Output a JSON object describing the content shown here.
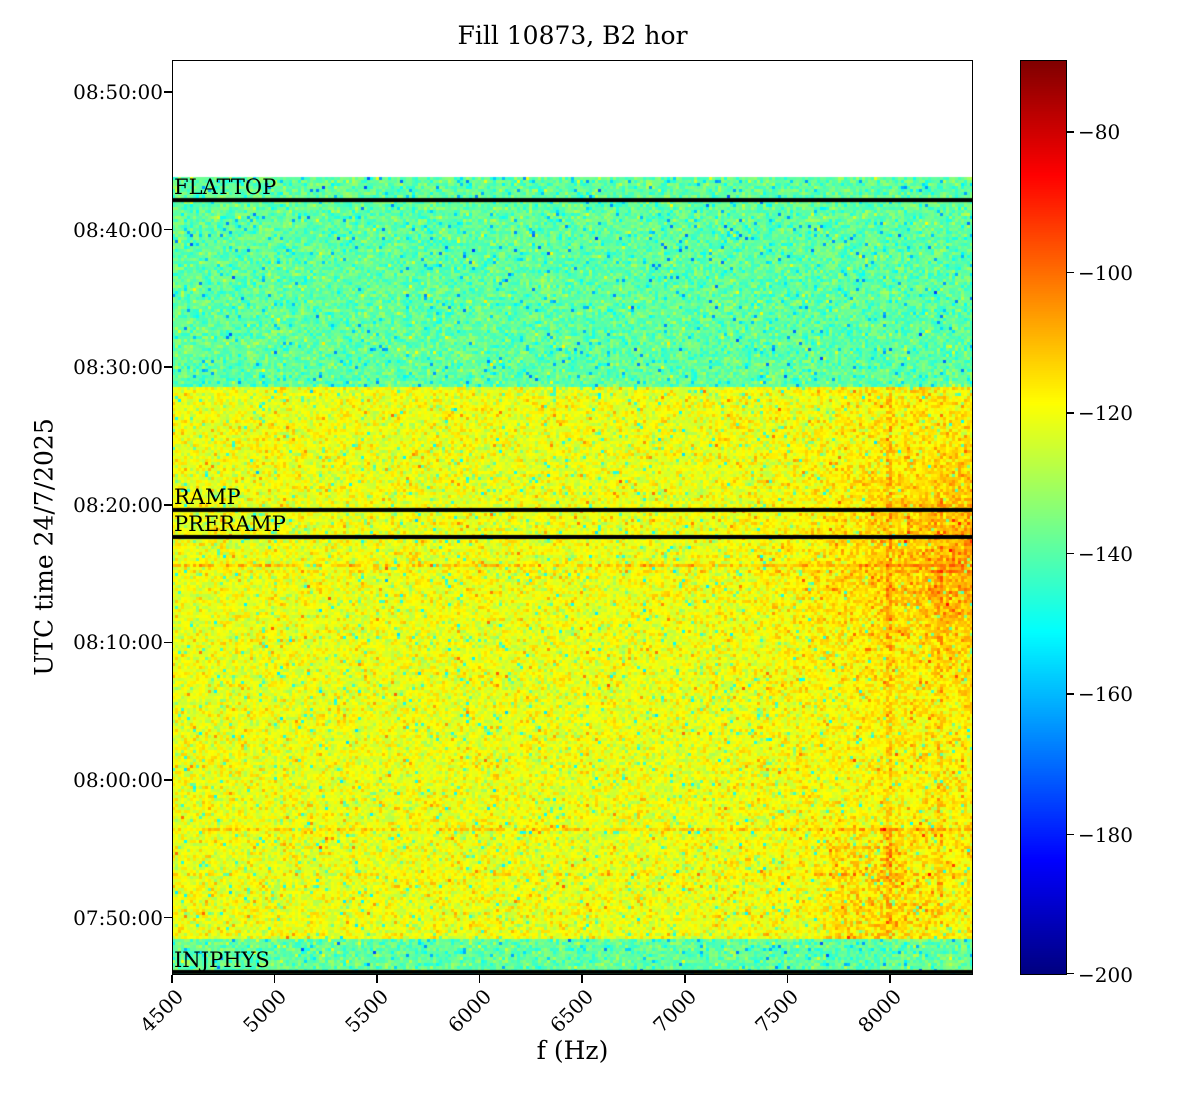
{
  "chart_data": {
    "type": "heatmap",
    "subtype": "spectrogram",
    "title": "Fill 10873, B2 hor",
    "xlabel": "f (Hz)",
    "ylabel": "UTC time 24/7/2025",
    "x_range_hz": [
      4500,
      8405
    ],
    "x_ticks_hz": [
      4500,
      5000,
      5500,
      6000,
      6500,
      7000,
      7500,
      8000
    ],
    "y_range_utc": [
      "07:45:50",
      "08:52:20"
    ],
    "y_ticks_utc": [
      "08:50:00",
      "08:40:00",
      "08:30:00",
      "08:20:00",
      "08:10:00",
      "08:00:00",
      "07:50:00"
    ],
    "colorbar": {
      "colormap": "jet",
      "vmin": -200,
      "vmax": -69.75,
      "ticks": [
        -80,
        -100,
        -120,
        -140,
        -160,
        -180,
        -200
      ]
    },
    "events": [
      {
        "label": "FLATTOP",
        "time_utc": "08:42:09"
      },
      {
        "label": "RAMP",
        "time_utc": "08:19:38"
      },
      {
        "label": "PRERAMP",
        "time_utc": "08:17:40"
      },
      {
        "label": "INJPHYS",
        "time_utc": "07:45:54"
      }
    ],
    "bands": [
      {
        "name": "no-data",
        "from_utc": "08:43:45",
        "to_utc": "08:52:20",
        "mean_db": null
      },
      {
        "name": "flattop-plateau",
        "from_utc": "08:28:39",
        "to_utc": "08:43:45",
        "mean_db": -139
      },
      {
        "name": "injection-plateau",
        "from_utc": "07:48:23",
        "to_utc": "08:28:39",
        "mean_db": -121
      },
      {
        "name": "pre-injection",
        "from_utc": "07:45:50",
        "to_utc": "07:48:23",
        "mean_db": -139
      }
    ],
    "noise_sigma_db": 4.5,
    "features": {
      "horizontal_lines": [
        {
          "time_utc": "08:15:38",
          "amp_db": 10,
          "density": 1.0
        },
        {
          "time_utc": "08:15:07",
          "amp_db": 6,
          "density": 0.65
        },
        {
          "time_utc": "07:56:27",
          "amp_db": 9,
          "density": 0.95
        },
        {
          "time_utc": "07:53:10",
          "amp_db": 6,
          "density": 0.6
        }
      ],
      "vertical_lines": [
        {
          "f_hz": 8000,
          "from_utc": "07:48:30",
          "to_utc": "08:28:30",
          "amp_db": 9,
          "density": 0.85,
          "halfwidth_hz": 16
        },
        {
          "f_hz": 8250,
          "from_utc": "07:50:00",
          "to_utc": "08:20:30",
          "amp_db": 7,
          "density": 0.7,
          "halfwidth_hz": 14
        },
        {
          "f_hz": 5020,
          "from_utc": "08:19:40",
          "to_utc": "08:28:30",
          "amp_db": 4,
          "density": 0.8,
          "halfwidth_hz": 14
        }
      ],
      "cloud": {
        "f_from_hz": 7250,
        "time_center_utc": "08:16:00",
        "time_sigma_s": 300,
        "peak_db": 15
      },
      "bottom_cluster": {
        "f_from_hz": 7650,
        "f_to_hz": 8300,
        "f_center_hz": 7950,
        "from_utc": "07:48:20",
        "to_utc": "07:56:30",
        "amp_db": 12
      }
    }
  }
}
